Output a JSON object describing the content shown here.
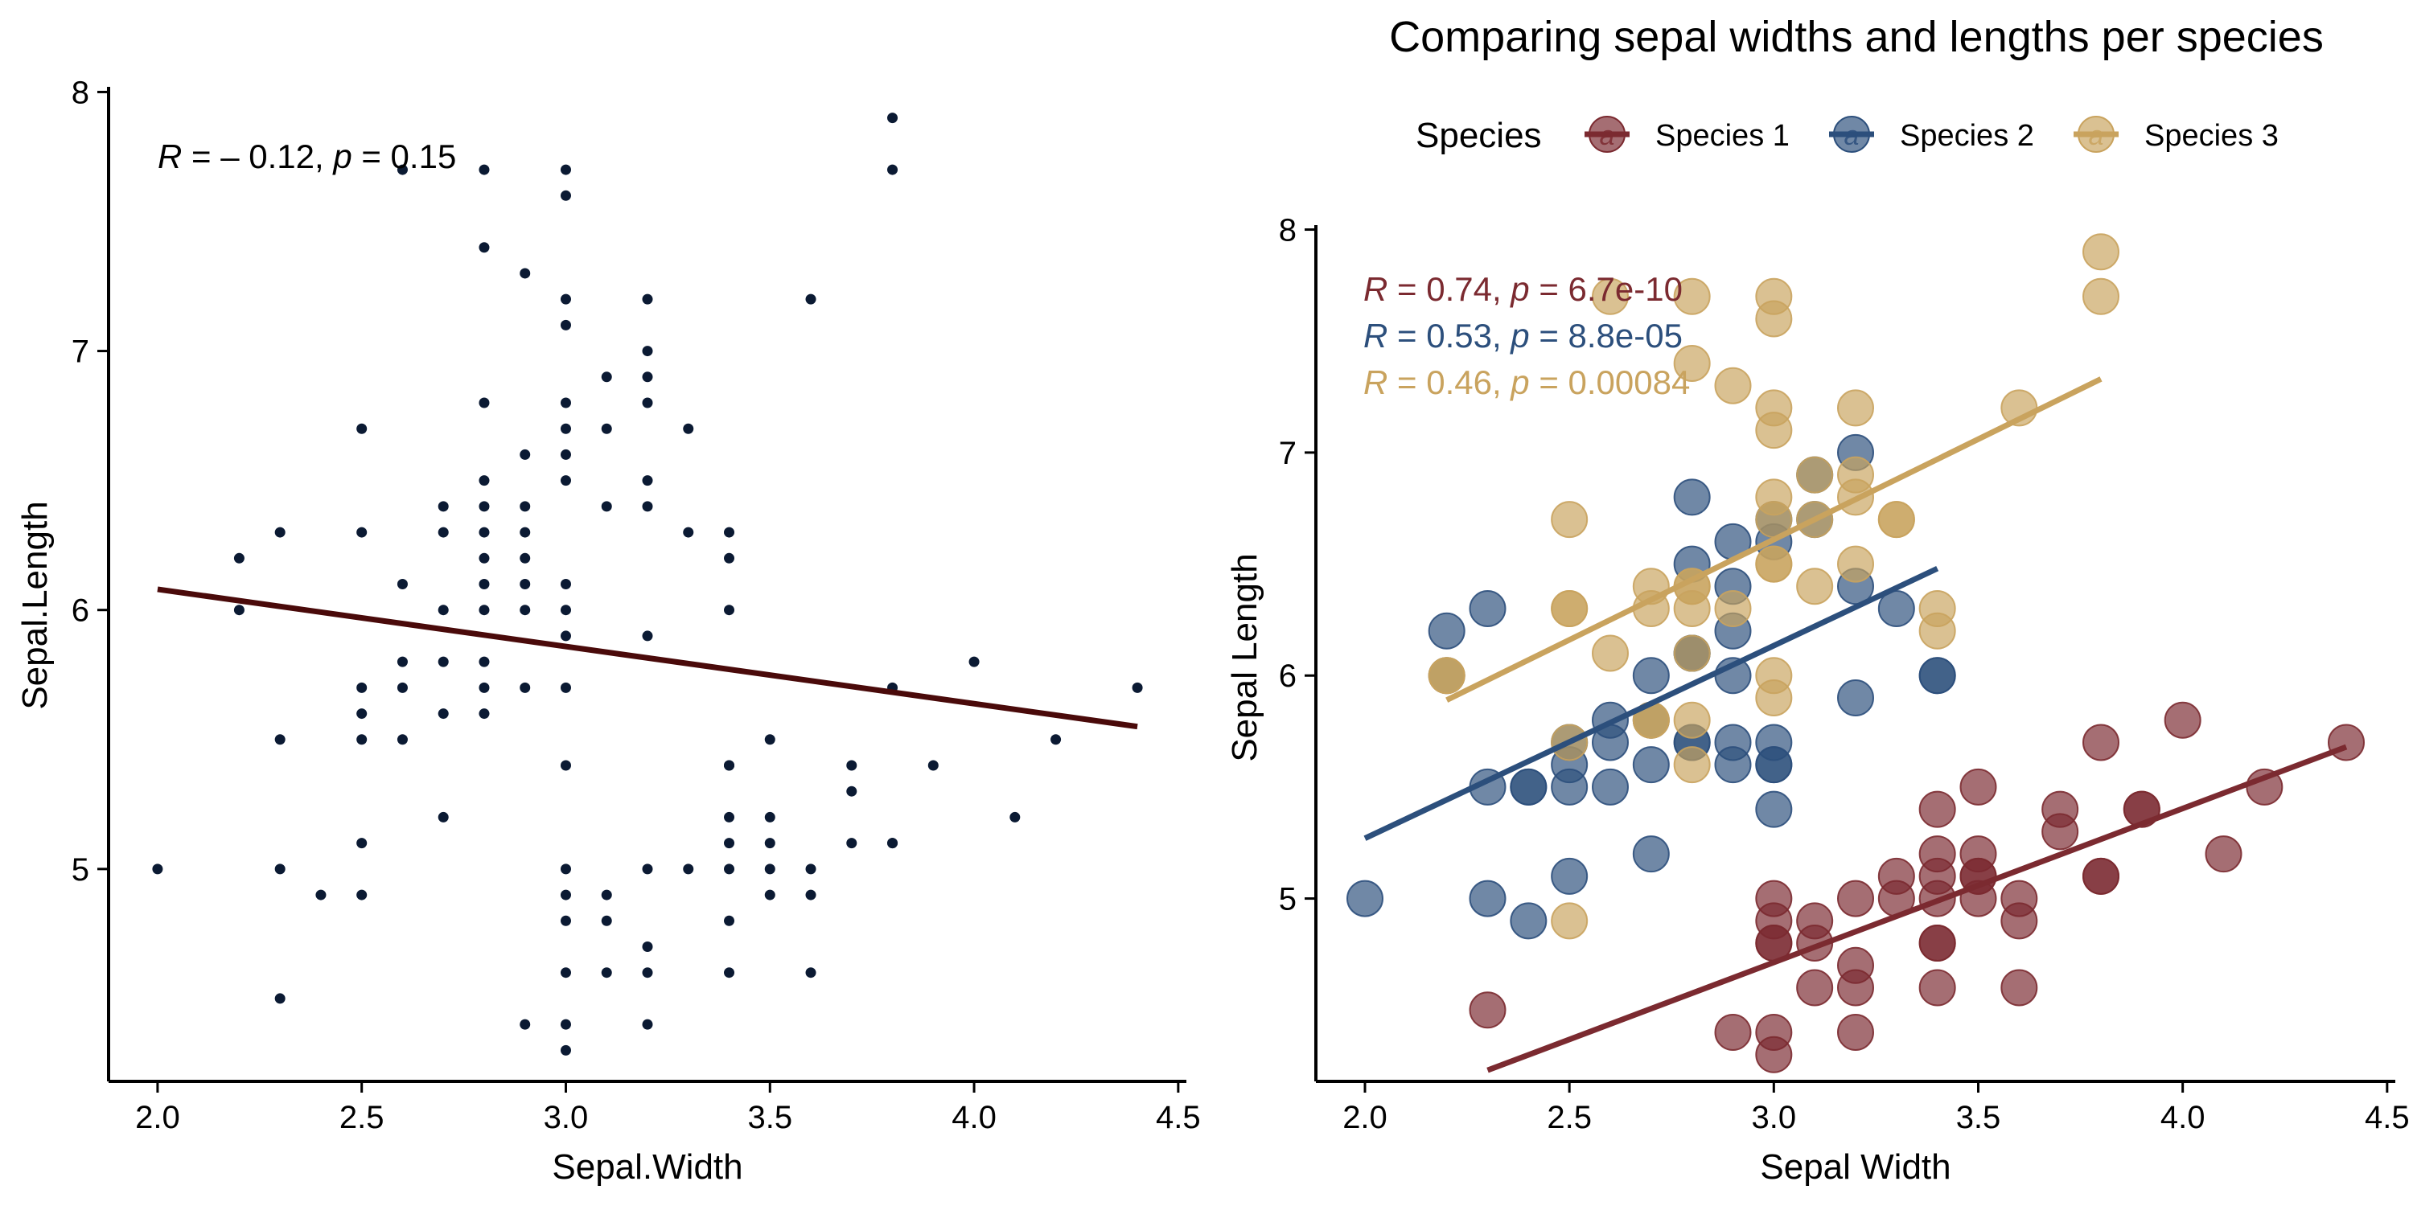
{
  "panels": [
    {
      "id": "left",
      "title": "",
      "xlabel": "Sepal.Width",
      "ylabel": "Sepal.Length",
      "xlim": [
        1.88,
        4.52
      ],
      "ylim": [
        4.18,
        8.02
      ],
      "xticks": [
        2.0,
        2.5,
        3.0,
        3.5,
        4.0,
        4.5
      ],
      "xtick_labels": [
        "2.0",
        "2.5",
        "3.0",
        "3.5",
        "4.0",
        "4.5"
      ],
      "yticks": [
        5,
        6,
        7,
        8
      ],
      "ytick_labels": [
        "5",
        "6",
        "7",
        "8"
      ],
      "annotation": {
        "r_label": "R",
        "r_text": " = – 0.12, ",
        "p_label": "p",
        "p_text": " = 0.15"
      }
    },
    {
      "id": "right",
      "title": "Comparing sepal widths and lengths per species",
      "xlabel": "Sepal Width",
      "ylabel": "Sepal Length",
      "xlim": [
        1.88,
        4.52
      ],
      "ylim": [
        4.18,
        8.02
      ],
      "xticks": [
        2.0,
        2.5,
        3.0,
        3.5,
        4.0,
        4.5
      ],
      "xtick_labels": [
        "2.0",
        "2.5",
        "3.0",
        "3.5",
        "4.0",
        "4.5"
      ],
      "yticks": [
        5,
        6,
        7,
        8
      ],
      "ytick_labels": [
        "5",
        "6",
        "7",
        "8"
      ],
      "legend_title": "Species",
      "legend_position": "top",
      "legend_glyph": "a"
    }
  ],
  "chart_data": [
    {
      "type": "scatter",
      "panel": "left",
      "point_color": "#0b1a33",
      "line_color": "#4a0a0a",
      "x": [
        2.0,
        2.2,
        2.2,
        2.3,
        2.3,
        2.3,
        2.3,
        2.4,
        2.5,
        2.5,
        2.5,
        2.5,
        2.5,
        2.5,
        2.5,
        2.6,
        2.6,
        2.6,
        2.6,
        2.6,
        2.7,
        2.7,
        2.7,
        2.7,
        2.7,
        2.7,
        2.8,
        2.8,
        2.8,
        2.8,
        2.8,
        2.8,
        2.8,
        2.8,
        2.8,
        2.8,
        2.8,
        2.8,
        2.9,
        2.9,
        2.9,
        2.9,
        2.9,
        2.9,
        2.9,
        2.9,
        2.9,
        3.0,
        3.0,
        3.0,
        3.0,
        3.0,
        3.0,
        3.0,
        3.0,
        3.0,
        3.0,
        3.0,
        3.0,
        3.0,
        3.0,
        3.0,
        3.0,
        3.0,
        3.0,
        3.0,
        3.1,
        3.1,
        3.1,
        3.1,
        3.1,
        3.1,
        3.2,
        3.2,
        3.2,
        3.2,
        3.2,
        3.2,
        3.2,
        3.2,
        3.2,
        3.2,
        3.2,
        3.3,
        3.3,
        3.3,
        3.4,
        3.4,
        3.4,
        3.4,
        3.4,
        3.4,
        3.4,
        3.4,
        3.4,
        3.4,
        3.5,
        3.5,
        3.5,
        3.5,
        3.5,
        3.6,
        3.6,
        3.6,
        3.6,
        3.7,
        3.7,
        3.7,
        3.8,
        3.8,
        3.8,
        3.8,
        3.8,
        3.9,
        4.0,
        4.1,
        4.2,
        4.4
      ],
      "y": [
        5.0,
        6.2,
        6.0,
        6.3,
        5.5,
        5.0,
        4.5,
        4.9,
        6.7,
        6.3,
        5.7,
        5.6,
        5.5,
        5.1,
        4.9,
        7.7,
        6.1,
        5.8,
        5.7,
        5.5,
        6.4,
        6.3,
        6.0,
        5.8,
        5.6,
        5.2,
        7.7,
        7.4,
        6.8,
        6.5,
        6.4,
        6.3,
        6.2,
        6.1,
        6.0,
        5.8,
        5.7,
        5.6,
        7.3,
        6.6,
        6.4,
        6.3,
        6.2,
        6.1,
        6.0,
        5.7,
        4.4,
        7.7,
        7.6,
        7.2,
        7.1,
        6.8,
        6.7,
        6.6,
        6.5,
        6.1,
        6.0,
        5.9,
        5.7,
        5.4,
        5.0,
        4.9,
        4.8,
        4.6,
        4.4,
        4.3,
        6.9,
        6.7,
        6.4,
        4.9,
        4.8,
        4.6,
        7.2,
        7.0,
        6.9,
        6.8,
        6.5,
        6.4,
        5.9,
        5.0,
        4.7,
        4.6,
        4.4,
        6.7,
        6.3,
        5.0,
        6.3,
        6.2,
        6.0,
        5.4,
        5.2,
        5.1,
        5.0,
        4.8,
        4.6,
        5.4,
        5.5,
        5.2,
        5.1,
        5.0,
        4.9,
        7.2,
        5.0,
        4.9,
        4.6,
        5.4,
        5.3,
        5.1,
        7.9,
        7.7,
        5.7,
        5.1,
        5.1,
        5.4,
        5.8,
        5.2,
        5.5,
        5.7
      ],
      "regression": {
        "x": [
          2.0,
          4.4
        ],
        "y": [
          6.08,
          5.55
        ]
      }
    },
    {
      "type": "scatter",
      "panel": "right",
      "series": [
        {
          "name": "Species 1",
          "color": "#7b2a30",
          "x": [
            2.3,
            2.9,
            3.0,
            3.0,
            3.0,
            3.0,
            3.0,
            3.0,
            3.1,
            3.1,
            3.1,
            3.2,
            3.2,
            3.2,
            3.2,
            3.3,
            3.3,
            3.4,
            3.4,
            3.4,
            3.4,
            3.4,
            3.4,
            3.4,
            3.5,
            3.5,
            3.5,
            3.5,
            3.5,
            3.6,
            3.6,
            3.6,
            3.7,
            3.7,
            3.8,
            3.8,
            3.8,
            3.9,
            3.9,
            4.0,
            4.1,
            4.2,
            4.4
          ],
          "y": [
            4.5,
            4.4,
            5.0,
            4.9,
            4.8,
            4.8,
            4.4,
            4.3,
            4.9,
            4.8,
            4.6,
            5.0,
            4.7,
            4.6,
            4.4,
            5.0,
            5.1,
            5.4,
            5.2,
            5.0,
            5.1,
            4.8,
            4.8,
            4.6,
            5.5,
            5.2,
            5.1,
            5.0,
            5.1,
            5.0,
            4.9,
            4.6,
            5.4,
            5.3,
            5.7,
            5.1,
            5.1,
            5.4,
            5.4,
            5.8,
            5.2,
            5.5,
            5.7
          ],
          "regression": {
            "x": [
              2.3,
              4.4
            ],
            "y": [
              4.23,
              5.68
            ]
          },
          "annotation": {
            "r_label": "R",
            "r_text": " = 0.74, ",
            "p_label": "p",
            "p_text": " = 6.7e-10"
          }
        },
        {
          "name": "Species 2",
          "color": "#2c4f7c",
          "x": [
            2.0,
            2.2,
            2.2,
            2.3,
            2.3,
            2.3,
            2.4,
            2.4,
            2.4,
            2.5,
            2.5,
            2.5,
            2.5,
            2.6,
            2.6,
            2.6,
            2.7,
            2.7,
            2.7,
            2.7,
            2.8,
            2.8,
            2.8,
            2.8,
            2.8,
            2.8,
            2.9,
            2.9,
            2.9,
            2.9,
            2.9,
            2.9,
            3.0,
            3.0,
            3.0,
            3.0,
            3.0,
            3.0,
            3.1,
            3.1,
            3.2,
            3.2,
            3.2,
            3.3,
            3.4,
            3.4
          ],
          "y": [
            5.0,
            6.2,
            6.0,
            6.3,
            5.5,
            5.0,
            5.5,
            5.5,
            4.9,
            5.6,
            5.5,
            5.1,
            5.7,
            5.8,
            5.7,
            5.5,
            6.0,
            5.8,
            5.6,
            5.2,
            6.8,
            6.5,
            6.1,
            6.1,
            5.7,
            5.7,
            6.6,
            6.4,
            6.2,
            6.0,
            5.7,
            5.6,
            6.7,
            6.6,
            5.7,
            5.6,
            5.6,
            5.4,
            6.7,
            6.9,
            7.0,
            6.4,
            5.9,
            6.3,
            6.0,
            6.0
          ],
          "regression": {
            "x": [
              2.0,
              3.4
            ],
            "y": [
              5.27,
              6.48
            ]
          },
          "annotation": {
            "r_label": "R",
            "r_text": " = 0.53, ",
            "p_label": "p",
            "p_text": " = 8.8e-05"
          }
        },
        {
          "name": "Species 3",
          "color": "#c9a35e",
          "x": [
            2.2,
            2.2,
            2.5,
            2.5,
            2.5,
            2.5,
            2.5,
            2.6,
            2.6,
            2.7,
            2.7,
            2.7,
            2.7,
            2.8,
            2.8,
            2.8,
            2.8,
            2.8,
            2.8,
            2.8,
            2.8,
            2.9,
            2.9,
            3.0,
            3.0,
            3.0,
            3.0,
            3.0,
            3.0,
            3.0,
            3.0,
            3.0,
            3.0,
            3.1,
            3.1,
            3.1,
            3.2,
            3.2,
            3.2,
            3.2,
            3.3,
            3.3,
            3.4,
            3.4,
            3.6,
            3.8,
            3.8
          ],
          "y": [
            6.0,
            6.0,
            6.7,
            6.3,
            5.7,
            4.9,
            6.3,
            7.7,
            6.1,
            6.4,
            6.3,
            5.8,
            5.8,
            7.7,
            7.4,
            6.4,
            6.4,
            6.3,
            6.1,
            5.8,
            5.6,
            7.3,
            6.3,
            7.7,
            7.6,
            7.2,
            7.1,
            6.8,
            6.7,
            6.5,
            6.5,
            6.0,
            5.9,
            6.9,
            6.7,
            6.4,
            7.2,
            6.9,
            6.8,
            6.5,
            6.7,
            6.7,
            6.3,
            6.2,
            7.2,
            7.9,
            7.7
          ],
          "regression": {
            "x": [
              2.2,
              3.8
            ],
            "y": [
              5.89,
              7.33
            ]
          },
          "annotation": {
            "r_label": "R",
            "r_text": " = 0.46, ",
            "p_label": "p",
            "p_text": " = 0.00084"
          }
        }
      ]
    }
  ]
}
